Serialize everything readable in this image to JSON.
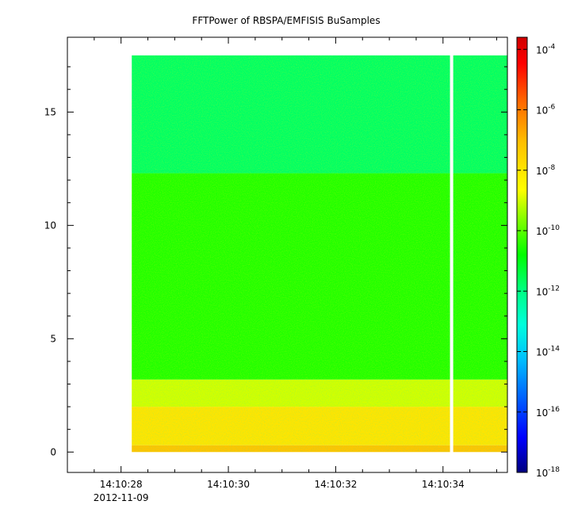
{
  "chart_data": {
    "type": "heatmap",
    "title": "FFTPower of RBSPA/EMFISIS  BuSamples",
    "xlabel": "",
    "ylabel": "",
    "x_ticks": [
      {
        "value": 28,
        "label": "14:10:28"
      },
      {
        "value": 30,
        "label": "14:10:30"
      },
      {
        "value": 32,
        "label": "14:10:32"
      },
      {
        "value": 34,
        "label": "14:10:34"
      }
    ],
    "x_date_label": "2012-11-09",
    "x_minor_ticks": [
      27.5,
      28.5,
      29,
      29.5,
      30.5,
      31,
      31.5,
      32.5,
      33,
      33.5,
      34.5,
      35
    ],
    "xlim": [
      27.0,
      35.2
    ],
    "y_ticks": [
      {
        "value": 0,
        "label": "0"
      },
      {
        "value": 5,
        "label": "5"
      },
      {
        "value": 10,
        "label": "10"
      },
      {
        "value": 15,
        "label": "15"
      }
    ],
    "y_minor_ticks": [
      1,
      2,
      3,
      4,
      6,
      7,
      8,
      9,
      11,
      12,
      13,
      14,
      16,
      17
    ],
    "ylim": [
      -0.9,
      18.3
    ],
    "data_extent": {
      "x": [
        28.2,
        35.2
      ],
      "y": [
        0,
        17.5
      ]
    },
    "data_gap": {
      "x": [
        34.13,
        34.19
      ]
    },
    "spectrum_bands": [
      {
        "y": [
          0.0,
          0.3
        ],
        "log10_power": -7.2
      },
      {
        "y": [
          0.3,
          2.0
        ],
        "log10_power": -8.0
      },
      {
        "y": [
          2.0,
          3.2
        ],
        "log10_power": -9.0
      },
      {
        "y": [
          3.2,
          12.3
        ],
        "log10_power": -10.5
      },
      {
        "y": [
          12.3,
          17.5
        ],
        "log10_power": -11.7
      }
    ],
    "colorbar": {
      "scale": "log",
      "range": [
        -18,
        -3.6
      ],
      "ticks": [
        {
          "base": "10",
          "exp": "-4",
          "value": -4
        },
        {
          "base": "10",
          "exp": "-6",
          "value": -6
        },
        {
          "base": "10",
          "exp": "-8",
          "value": -8
        },
        {
          "base": "10",
          "exp": "-10",
          "value": -10
        },
        {
          "base": "10",
          "exp": "-12",
          "value": -12
        },
        {
          "base": "10",
          "exp": "-14",
          "value": -14
        },
        {
          "base": "10",
          "exp": "-16",
          "value": -16
        },
        {
          "base": "10",
          "exp": "-18",
          "value": -18
        }
      ],
      "colormap": [
        "#00007f",
        "#0000ff",
        "#00ffff",
        "#00ff00",
        "#ffff00",
        "#ff0000",
        "#7f0000"
      ]
    },
    "grid": false
  }
}
